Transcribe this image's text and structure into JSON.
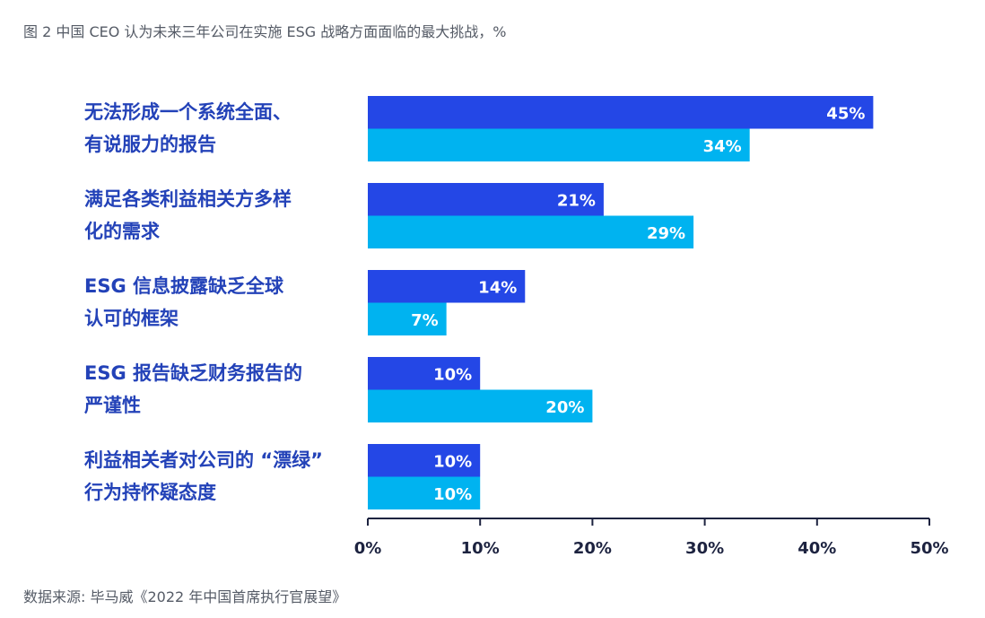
{
  "title": "图 2 中国 CEO 认为未来三年公司在实施 ESG 战略方面面临的最大挑战，%",
  "source": "数据来源: 毕马威《2022 年中国首席执行官展望》",
  "colors": {
    "series_a": "#2447e6",
    "series_b": "#00b3f0",
    "axis": "#1d2340",
    "label": "#2342b8"
  },
  "chart_data": {
    "type": "bar",
    "orientation": "horizontal",
    "categories": [
      [
        "无法形成一个系统全面、",
        "有说服力的报告"
      ],
      [
        "满足各类利益相关方多样",
        "化的需求"
      ],
      [
        "ESG 信息披露缺乏全球",
        "认可的框架"
      ],
      [
        "ESG 报告缺乏财务报告的",
        "严谨性"
      ],
      [
        "利益相关者对公司的 “漂绿”",
        "行为持怀疑态度"
      ]
    ],
    "series": [
      {
        "values": [
          45,
          21,
          14,
          10,
          10
        ]
      },
      {
        "values": [
          34,
          29,
          7,
          20,
          10
        ]
      }
    ],
    "xlim": [
      0,
      50
    ],
    "xticks": [
      0,
      10,
      20,
      30,
      40,
      50
    ],
    "xtick_labels": [
      "0%",
      "10%",
      "20%",
      "30%",
      "40%",
      "50%"
    ],
    "value_suffix": "%",
    "grid": false,
    "xlabel": "",
    "ylabel": ""
  }
}
